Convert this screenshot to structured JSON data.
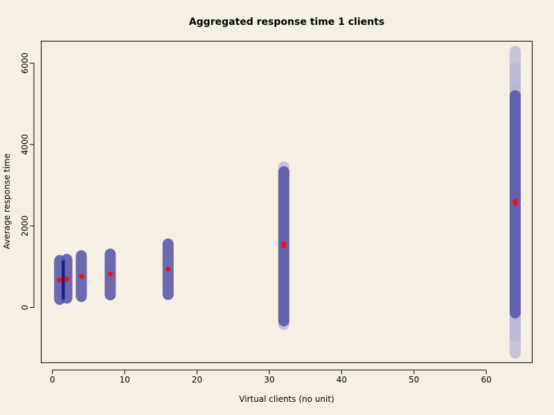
{
  "chart_data": {
    "type": "scatter",
    "title": "Aggregated response time 1 clients",
    "xlabel": "Virtual clients (no unit)",
    "ylabel": "Average response time",
    "xlim": [
      -1.5,
      66.3
    ],
    "ylim": [
      -1350,
      6530
    ],
    "x_ticks": [
      0,
      10,
      20,
      30,
      40,
      50,
      60
    ],
    "y_ticks": [
      0,
      2000,
      4000,
      6000
    ],
    "colors": {
      "background": "#f6f0e4",
      "band": "#5451a6",
      "band_faint": "#b7b6d4",
      "point": "#ee1111",
      "line": "#1a1a8c"
    },
    "range_bands": [
      {
        "x": 1,
        "segments": [
          {
            "low": 200,
            "high": 1150,
            "opacity": 0.85
          }
        ]
      },
      {
        "x": 2,
        "segments": [
          {
            "low": 230,
            "high": 1180,
            "opacity": 0.85
          }
        ]
      },
      {
        "x": 4,
        "segments": [
          {
            "low": 270,
            "high": 1270,
            "opacity": 0.85
          }
        ]
      },
      {
        "x": 8,
        "segments": [
          {
            "low": 310,
            "high": 1310,
            "opacity": 0.85
          }
        ]
      },
      {
        "x": 16,
        "segments": [
          {
            "low": 320,
            "high": 1560,
            "opacity": 0.85
          }
        ]
      },
      {
        "x": 32,
        "segments": [
          {
            "low": -420,
            "high": 3450,
            "opacity": 0.3
          },
          {
            "low": -330,
            "high": 3330,
            "opacity": 0.85
          }
        ]
      },
      {
        "x": 64,
        "segments": [
          {
            "low": -1120,
            "high": 6290,
            "opacity": 0.3
          },
          {
            "low": -700,
            "high": 5870,
            "opacity": 0.3
          },
          {
            "low": -210,
            "high": 5310,
            "opacity": 0.45
          },
          {
            "low": -130,
            "high": 5200,
            "opacity": 0.85
          }
        ]
      }
    ],
    "mean_line": {
      "x": 1.5,
      "low": 200,
      "high": 1150
    },
    "series": [
      {
        "name": "average",
        "x": [
          1,
          2,
          4,
          8,
          16,
          32,
          32,
          64,
          64
        ],
        "y": [
          670,
          700,
          760,
          820,
          940,
          1510,
          1570,
          2560,
          2610
        ]
      }
    ]
  }
}
